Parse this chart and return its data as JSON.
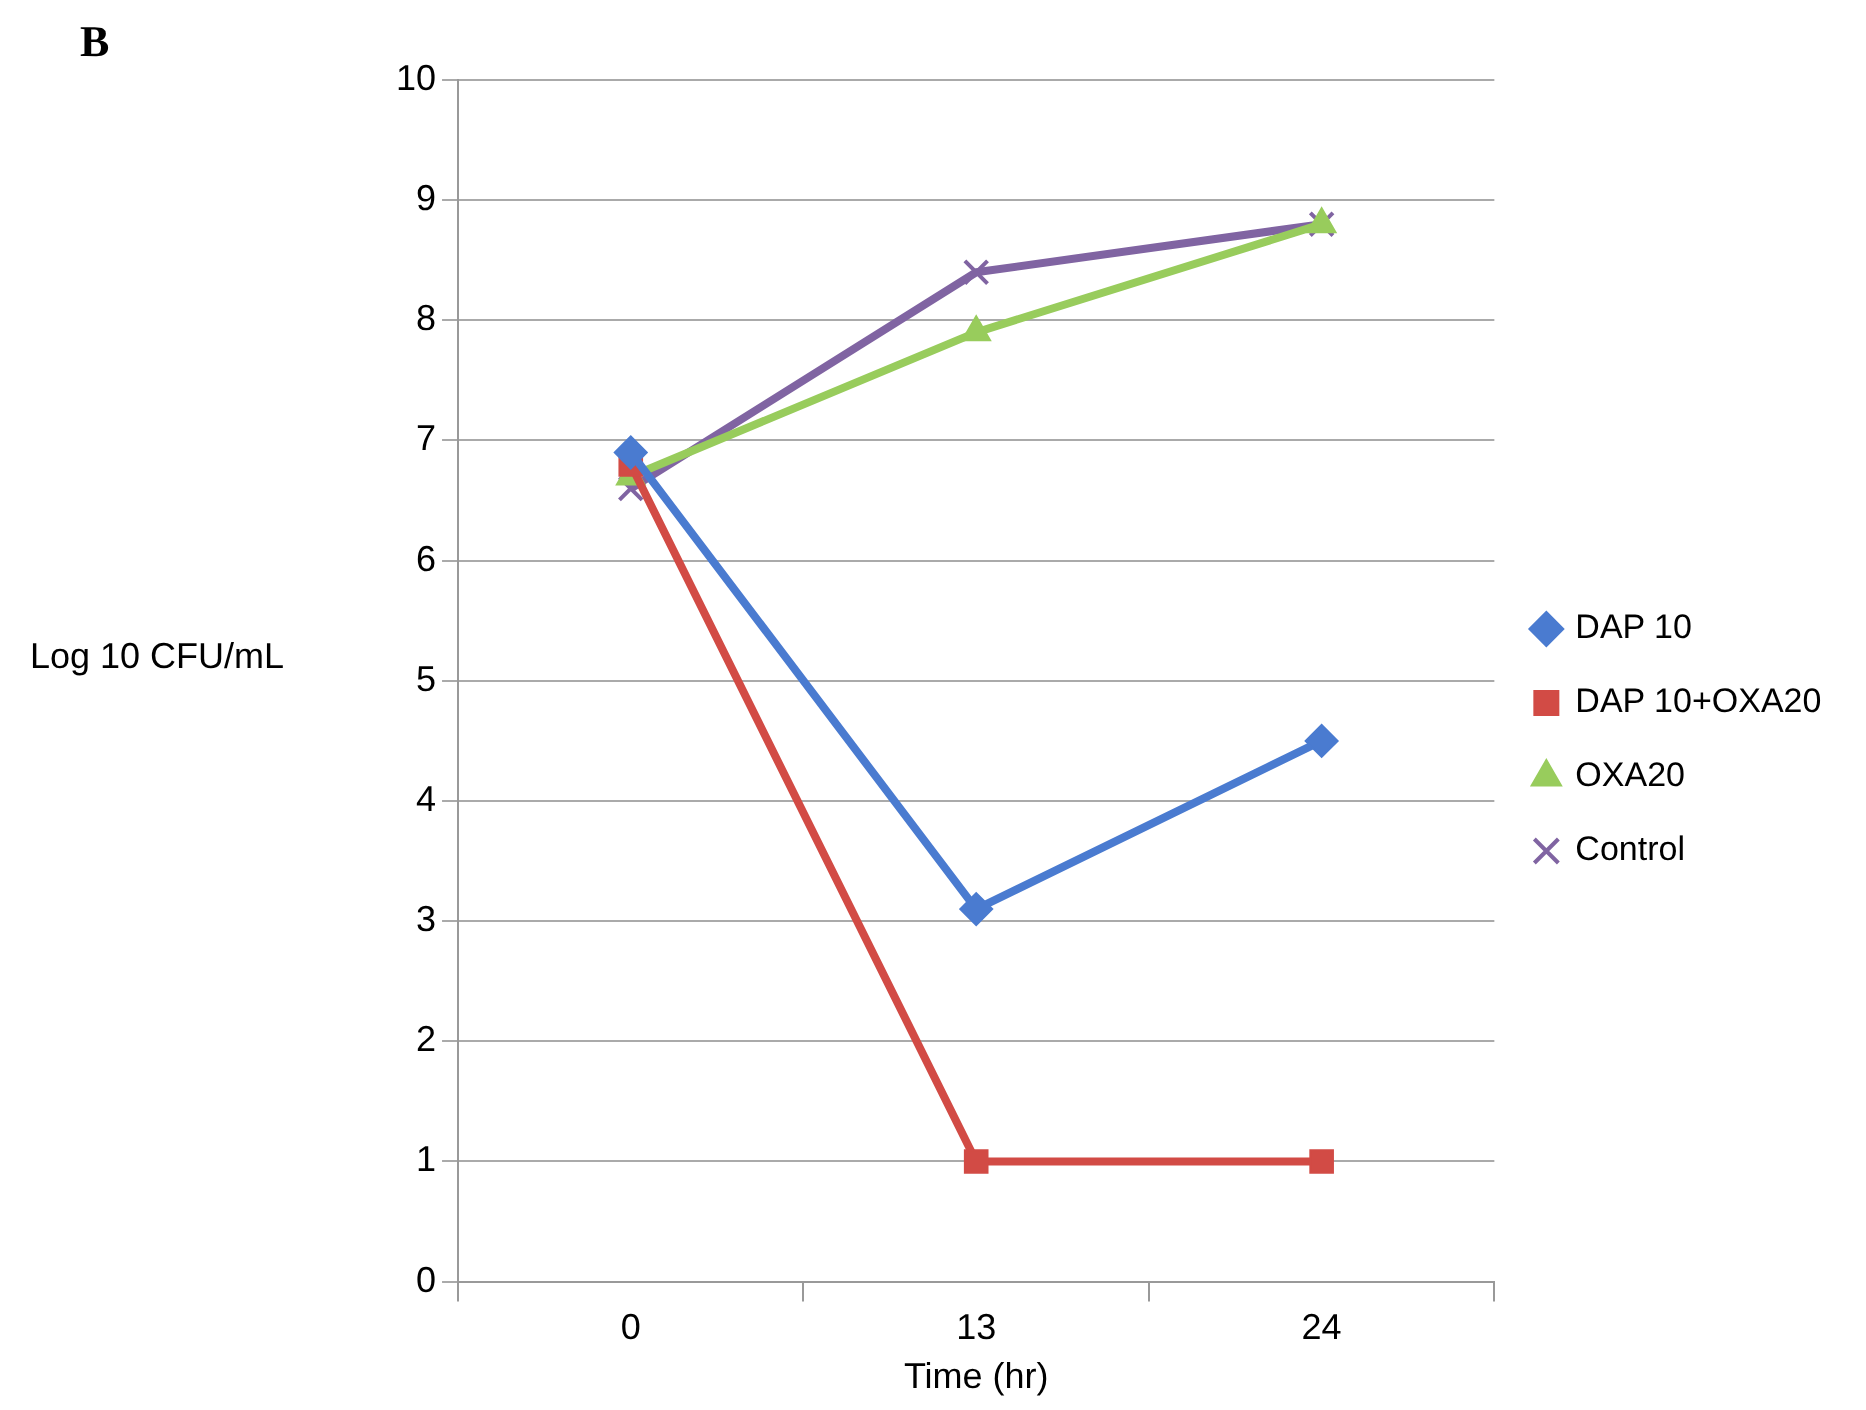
{
  "chart_data": {
    "type": "line",
    "annotations": [
      "B"
    ],
    "xlabel": "Time (hr)",
    "ylabel": "Log 10 CFU/mL",
    "categories": [
      "0",
      "13",
      "24"
    ],
    "series": [
      {
        "name": "DAP 10",
        "color": "#4a7bd0",
        "values": [
          6.9,
          3.1,
          4.5
        ],
        "marker": "diamond"
      },
      {
        "name": "DAP 10+OXA20",
        "color": "#d24b45",
        "values": [
          6.8,
          1.0,
          1.0
        ],
        "marker": "square"
      },
      {
        "name": "OXA20",
        "color": "#98cc5c",
        "values": [
          6.7,
          7.9,
          8.8
        ],
        "marker": "triangle"
      },
      {
        "name": "Control",
        "color": "#8064a2",
        "values": [
          6.6,
          8.4,
          8.8
        ],
        "marker": "cross"
      }
    ],
    "ylim": [
      0,
      10
    ],
    "yticks": [
      0,
      1,
      2,
      3,
      4,
      5,
      6,
      7,
      8,
      9,
      10
    ],
    "grid": "y",
    "legend": "right",
    "line_style": "solid"
  }
}
